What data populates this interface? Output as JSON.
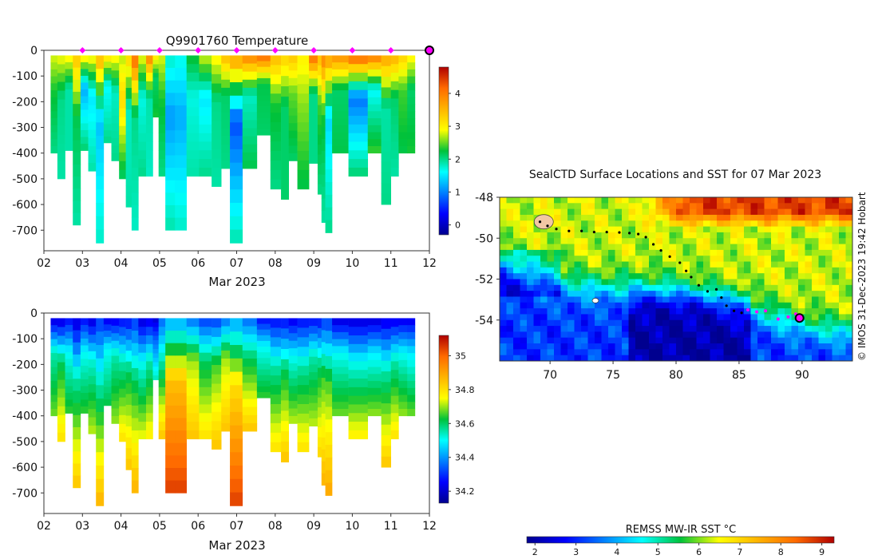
{
  "chart_data": [
    {
      "type": "heatmap",
      "title": "Q9901760  Temperature",
      "xlabel": "Mar 2023",
      "ylabel": "",
      "x_ticks": [
        "02",
        "03",
        "04",
        "05",
        "06",
        "07",
        "08",
        "09",
        "10",
        "11",
        "12"
      ],
      "y_ticks": [
        "0",
        "-100",
        "-200",
        "-300",
        "-400",
        "-500",
        "-600",
        "-700"
      ],
      "xlim": [
        2,
        12
      ],
      "ylim": [
        -780,
        0
      ],
      "colorbar": {
        "ticks": [
          "0",
          "1",
          "2",
          "3",
          "4"
        ],
        "range": [
          -0.3,
          4.8
        ]
      },
      "profiles": [
        {
          "t": 2.25,
          "depth": 400,
          "top": 2.8,
          "mid": 2.3,
          "bottom": 2.0
        },
        {
          "t": 2.45,
          "depth": 500,
          "top": 2.9,
          "mid": 2.0,
          "bottom": 1.9
        },
        {
          "t": 2.65,
          "depth": 390,
          "top": 3.0,
          "mid": 1.9,
          "bottom": 1.9
        },
        {
          "t": 2.85,
          "depth": 680,
          "top": 3.4,
          "mid": 2.2,
          "bottom": 1.9
        },
        {
          "t": 3.05,
          "depth": 390,
          "top": 3.1,
          "mid": 1.2,
          "bottom": 2.1
        },
        {
          "t": 3.25,
          "depth": 470,
          "top": 3.0,
          "mid": 1.5,
          "bottom": 1.9
        },
        {
          "t": 3.45,
          "depth": 750,
          "top": 3.6,
          "mid": 1.3,
          "bottom": 1.8
        },
        {
          "t": 3.65,
          "depth": 360,
          "top": 3.2,
          "mid": 1.6,
          "bottom": 2.0
        },
        {
          "t": 3.85,
          "depth": 430,
          "top": 3.0,
          "mid": 1.8,
          "bottom": 2.0
        },
        {
          "t": 4.05,
          "depth": 500,
          "top": 2.7,
          "mid": 3.2,
          "bottom": 2.1
        },
        {
          "t": 4.2,
          "depth": 610,
          "top": 3.3,
          "mid": 1.8,
          "bottom": 1.9
        },
        {
          "t": 4.35,
          "depth": 700,
          "top": 4.2,
          "mid": 2.0,
          "bottom": 1.8
        },
        {
          "t": 4.55,
          "depth": 490,
          "top": 2.9,
          "mid": 1.7,
          "bottom": 2.0
        },
        {
          "t": 4.75,
          "depth": 490,
          "top": 4.0,
          "mid": 1.9,
          "bottom": 1.8
        },
        {
          "t": 4.9,
          "depth": 260,
          "top": 3.1,
          "mid": 2.1,
          "bottom": 2.3
        },
        {
          "t": 5.05,
          "depth": 490,
          "top": 2.8,
          "mid": 2.3,
          "bottom": 2.0
        },
        {
          "t": 5.25,
          "depth": 700,
          "top": 1.8,
          "mid": 1.1,
          "bottom": 1.9
        },
        {
          "t": 5.55,
          "depth": 700,
          "top": 1.7,
          "mid": 1.2,
          "bottom": 1.8
        },
        {
          "t": 5.85,
          "depth": 490,
          "top": 2.3,
          "mid": 1.7,
          "bottom": 1.9
        },
        {
          "t": 6.2,
          "depth": 490,
          "top": 2.8,
          "mid": 1.5,
          "bottom": 2.0
        },
        {
          "t": 6.5,
          "depth": 530,
          "top": 3.0,
          "mid": 2.0,
          "bottom": 1.9
        },
        {
          "t": 6.7,
          "depth": 460,
          "top": 3.5,
          "mid": 2.1,
          "bottom": 2.0
        },
        {
          "t": 6.95,
          "depth": 750,
          "top": 3.8,
          "mid": 0.7,
          "bottom": 1.9
        },
        {
          "t": 7.35,
          "depth": 460,
          "top": 4.0,
          "mid": 1.8,
          "bottom": 2.2
        },
        {
          "t": 7.7,
          "depth": 330,
          "top": 4.2,
          "mid": 2.2,
          "bottom": 2.1
        },
        {
          "t": 8.05,
          "depth": 540,
          "top": 3.5,
          "mid": 2.3,
          "bottom": 2.0
        },
        {
          "t": 8.25,
          "depth": 580,
          "top": 3.3,
          "mid": 2.1,
          "bottom": 2.1
        },
        {
          "t": 8.45,
          "depth": 430,
          "top": 3.4,
          "mid": 2.5,
          "bottom": 2.1
        },
        {
          "t": 8.7,
          "depth": 540,
          "top": 3.0,
          "mid": 2.6,
          "bottom": 2.2
        },
        {
          "t": 9.05,
          "depth": 440,
          "top": 4.2,
          "mid": 2.0,
          "bottom": 2.0
        },
        {
          "t": 9.15,
          "depth": 560,
          "top": 3.5,
          "mid": 2.4,
          "bottom": 2.0
        },
        {
          "t": 9.25,
          "depth": 670,
          "top": 4.0,
          "mid": 2.3,
          "bottom": 1.9
        },
        {
          "t": 9.35,
          "depth": 710,
          "top": 3.8,
          "mid": 1.4,
          "bottom": 2.0
        },
        {
          "t": 9.6,
          "depth": 400,
          "top": 3.9,
          "mid": 2.1,
          "bottom": 2.2
        },
        {
          "t": 10.2,
          "depth": 490,
          "top": 4.3,
          "mid": 0.9,
          "bottom": 2.1
        },
        {
          "t": 10.6,
          "depth": 400,
          "top": 4.1,
          "mid": 1.6,
          "bottom": 2.4
        },
        {
          "t": 10.9,
          "depth": 600,
          "top": 3.7,
          "mid": 1.9,
          "bottom": 2.0
        },
        {
          "t": 11.1,
          "depth": 490,
          "top": 3.6,
          "mid": 2.1,
          "bottom": 1.9
        },
        {
          "t": 11.3,
          "depth": 400,
          "top": 3.3,
          "mid": 2.4,
          "bottom": 2.2
        },
        {
          "t": 11.55,
          "depth": 400,
          "top": 3.0,
          "mid": 2.1,
          "bottom": 2.3
        }
      ],
      "surface_markers": [
        3,
        4,
        5,
        6,
        7,
        8,
        9,
        10,
        11
      ],
      "current_marker": 12
    },
    {
      "type": "heatmap",
      "title": "",
      "xlabel": "Mar 2023",
      "ylabel": "",
      "x_ticks": [
        "02",
        "03",
        "04",
        "05",
        "06",
        "07",
        "08",
        "09",
        "10",
        "11",
        "12"
      ],
      "y_ticks": [
        "0",
        "-100",
        "-200",
        "-300",
        "-400",
        "-500",
        "-600",
        "-700"
      ],
      "xlim": [
        2,
        12
      ],
      "ylim": [
        -780,
        0
      ],
      "colorbar": {
        "ticks": [
          "34.2",
          "34.4",
          "34.6",
          "34.8",
          "35"
        ],
        "range": [
          34.13,
          35.12
        ]
      },
      "profiles": [
        {
          "t": 2.25,
          "depth": 400,
          "top": 34.2,
          "mid": 34.55,
          "bottom": 34.68
        },
        {
          "t": 2.45,
          "depth": 500,
          "top": 34.2,
          "mid": 34.6,
          "bottom": 34.8
        },
        {
          "t": 2.65,
          "depth": 390,
          "top": 34.25,
          "mid": 34.5,
          "bottom": 34.65
        },
        {
          "t": 2.85,
          "depth": 680,
          "top": 34.2,
          "mid": 34.55,
          "bottom": 34.85
        },
        {
          "t": 3.05,
          "depth": 390,
          "top": 34.25,
          "mid": 34.5,
          "bottom": 34.65
        },
        {
          "t": 3.25,
          "depth": 470,
          "top": 34.2,
          "mid": 34.52,
          "bottom": 34.72
        },
        {
          "t": 3.45,
          "depth": 750,
          "top": 34.3,
          "mid": 34.55,
          "bottom": 34.88
        },
        {
          "t": 3.65,
          "depth": 360,
          "top": 34.22,
          "mid": 34.5,
          "bottom": 34.62
        },
        {
          "t": 3.85,
          "depth": 430,
          "top": 34.22,
          "mid": 34.55,
          "bottom": 34.7
        },
        {
          "t": 4.05,
          "depth": 500,
          "top": 34.25,
          "mid": 34.55,
          "bottom": 34.8
        },
        {
          "t": 4.2,
          "depth": 610,
          "top": 34.25,
          "mid": 34.6,
          "bottom": 34.85
        },
        {
          "t": 4.35,
          "depth": 700,
          "top": 34.3,
          "mid": 34.6,
          "bottom": 34.88
        },
        {
          "t": 4.55,
          "depth": 490,
          "top": 34.2,
          "mid": 34.5,
          "bottom": 34.75
        },
        {
          "t": 4.75,
          "depth": 490,
          "top": 34.22,
          "mid": 34.55,
          "bottom": 34.78
        },
        {
          "t": 4.9,
          "depth": 260,
          "top": 34.2,
          "mid": 34.35,
          "bottom": 34.55
        },
        {
          "t": 5.05,
          "depth": 490,
          "top": 34.35,
          "mid": 34.55,
          "bottom": 34.85
        },
        {
          "t": 5.25,
          "depth": 700,
          "top": 34.4,
          "mid": 34.85,
          "bottom": 35.05
        },
        {
          "t": 5.55,
          "depth": 700,
          "top": 34.4,
          "mid": 34.85,
          "bottom": 35.05
        },
        {
          "t": 5.85,
          "depth": 490,
          "top": 34.35,
          "mid": 34.7,
          "bottom": 34.85
        },
        {
          "t": 6.2,
          "depth": 490,
          "top": 34.3,
          "mid": 34.6,
          "bottom": 34.8
        },
        {
          "t": 6.5,
          "depth": 530,
          "top": 34.3,
          "mid": 34.65,
          "bottom": 34.85
        },
        {
          "t": 6.7,
          "depth": 460,
          "top": 34.35,
          "mid": 34.7,
          "bottom": 34.85
        },
        {
          "t": 6.95,
          "depth": 750,
          "top": 34.4,
          "mid": 34.8,
          "bottom": 35.05
        },
        {
          "t": 7.35,
          "depth": 460,
          "top": 34.35,
          "mid": 34.6,
          "bottom": 34.85
        },
        {
          "t": 7.7,
          "depth": 330,
          "top": 34.25,
          "mid": 34.5,
          "bottom": 34.65
        },
        {
          "t": 8.05,
          "depth": 540,
          "top": 34.25,
          "mid": 34.55,
          "bottom": 34.8
        },
        {
          "t": 8.25,
          "depth": 580,
          "top": 34.25,
          "mid": 34.6,
          "bottom": 34.85
        },
        {
          "t": 8.45,
          "depth": 430,
          "top": 34.22,
          "mid": 34.5,
          "bottom": 34.72
        },
        {
          "t": 8.7,
          "depth": 540,
          "top": 34.25,
          "mid": 34.55,
          "bottom": 34.8
        },
        {
          "t": 9.05,
          "depth": 440,
          "top": 34.25,
          "mid": 34.55,
          "bottom": 34.72
        },
        {
          "t": 9.15,
          "depth": 560,
          "top": 34.25,
          "mid": 34.6,
          "bottom": 34.82
        },
        {
          "t": 9.25,
          "depth": 670,
          "top": 34.3,
          "mid": 34.65,
          "bottom": 34.88
        },
        {
          "t": 9.35,
          "depth": 710,
          "top": 34.3,
          "mid": 34.65,
          "bottom": 34.9
        },
        {
          "t": 9.6,
          "depth": 400,
          "top": 34.2,
          "mid": 34.5,
          "bottom": 34.68
        },
        {
          "t": 10.2,
          "depth": 490,
          "top": 34.2,
          "mid": 34.5,
          "bottom": 34.78
        },
        {
          "t": 10.6,
          "depth": 400,
          "top": 34.2,
          "mid": 34.48,
          "bottom": 34.7
        },
        {
          "t": 10.9,
          "depth": 600,
          "top": 34.22,
          "mid": 34.55,
          "bottom": 34.85
        },
        {
          "t": 11.1,
          "depth": 490,
          "top": 34.22,
          "mid": 34.55,
          "bottom": 34.8
        },
        {
          "t": 11.3,
          "depth": 400,
          "top": 34.22,
          "mid": 34.5,
          "bottom": 34.7
        },
        {
          "t": 11.55,
          "depth": 400,
          "top": 34.22,
          "mid": 34.48,
          "bottom": 34.68
        }
      ]
    },
    {
      "type": "map",
      "title": "SealCTD Surface Locations and SST for 07 Mar 2023",
      "x_ticks": [
        "70",
        "75",
        "80",
        "85",
        "90"
      ],
      "y_ticks": [
        "-48",
        "-50",
        "-52",
        "-54"
      ],
      "xlim": [
        66,
        94
      ],
      "ylim": [
        -56,
        -48
      ],
      "colorbar": {
        "label": "REMSS MW-IR SST °C",
        "ticks": [
          "2",
          "3",
          "4",
          "5",
          "6",
          "7",
          "8",
          "9"
        ],
        "range": [
          1.8,
          9.3
        ]
      },
      "track": [
        [
          69.2,
          -49.2
        ],
        [
          69.8,
          -49.4
        ],
        [
          70.5,
          -49.55
        ],
        [
          71.5,
          -49.65
        ],
        [
          72.5,
          -49.65
        ],
        [
          73.5,
          -49.7
        ],
        [
          74.5,
          -49.7
        ],
        [
          75.5,
          -49.72
        ],
        [
          76.3,
          -49.75
        ],
        [
          77.0,
          -49.8
        ],
        [
          77.6,
          -49.95
        ],
        [
          78.2,
          -50.3
        ],
        [
          78.8,
          -50.6
        ],
        [
          79.5,
          -50.9
        ],
        [
          80.3,
          -51.2
        ],
        [
          80.8,
          -51.6
        ],
        [
          81.2,
          -51.9
        ],
        [
          81.8,
          -52.3
        ],
        [
          82.5,
          -52.6
        ],
        [
          83.2,
          -52.5
        ],
        [
          83.6,
          -52.9
        ],
        [
          84.0,
          -53.3
        ],
        [
          84.6,
          -53.55
        ],
        [
          85.2,
          -53.65
        ]
      ],
      "recent_track": [
        [
          85.7,
          -53.5
        ],
        [
          86.4,
          -53.6
        ],
        [
          87.1,
          -53.55
        ],
        [
          88.1,
          -53.95
        ],
        [
          88.9,
          -53.85
        ],
        [
          89.5,
          -53.7
        ]
      ],
      "current_position": [
        89.8,
        -53.9
      ],
      "islands": [
        [
          69.5,
          -49.2
        ],
        [
          73.6,
          -53.05
        ]
      ],
      "copyright": "© IMOS 31-Dec-2023 19:42 Hobart"
    }
  ]
}
